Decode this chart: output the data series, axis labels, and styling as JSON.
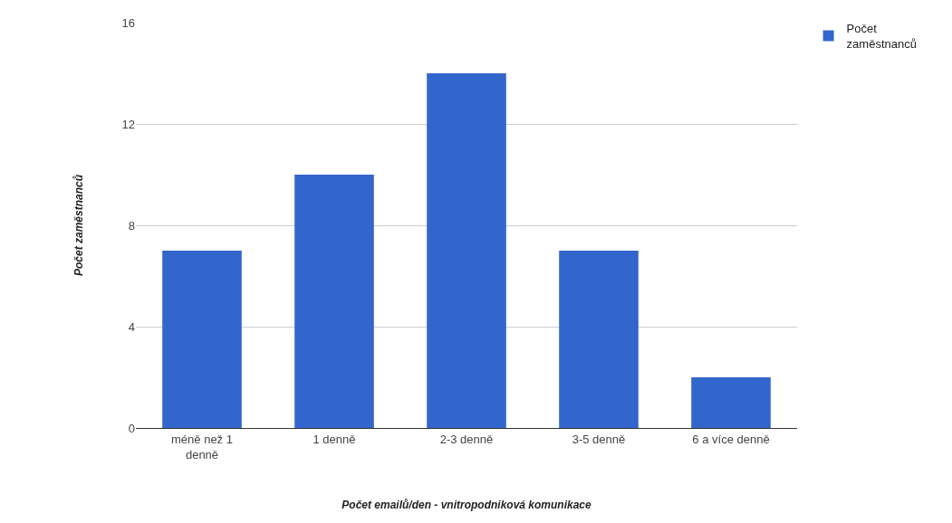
{
  "chart_data": {
    "type": "bar",
    "xlabel": "Počet emailů/den - vnitropodniková komunikace",
    "ylabel": "Počet zaměstnanců",
    "categories": [
      "méně než 1 denně",
      "1 denně",
      "2-3 denně",
      "3-5 denně",
      "6 a více denně"
    ],
    "series": [
      {
        "name": "Počet zaměstnanců",
        "color": "#3366cc",
        "values": [
          7,
          10,
          14,
          7,
          2
        ]
      }
    ],
    "ylim": [
      0,
      16
    ],
    "yticks": [
      0,
      4,
      8,
      12,
      16
    ],
    "grid": "y",
    "legend": "top right"
  }
}
